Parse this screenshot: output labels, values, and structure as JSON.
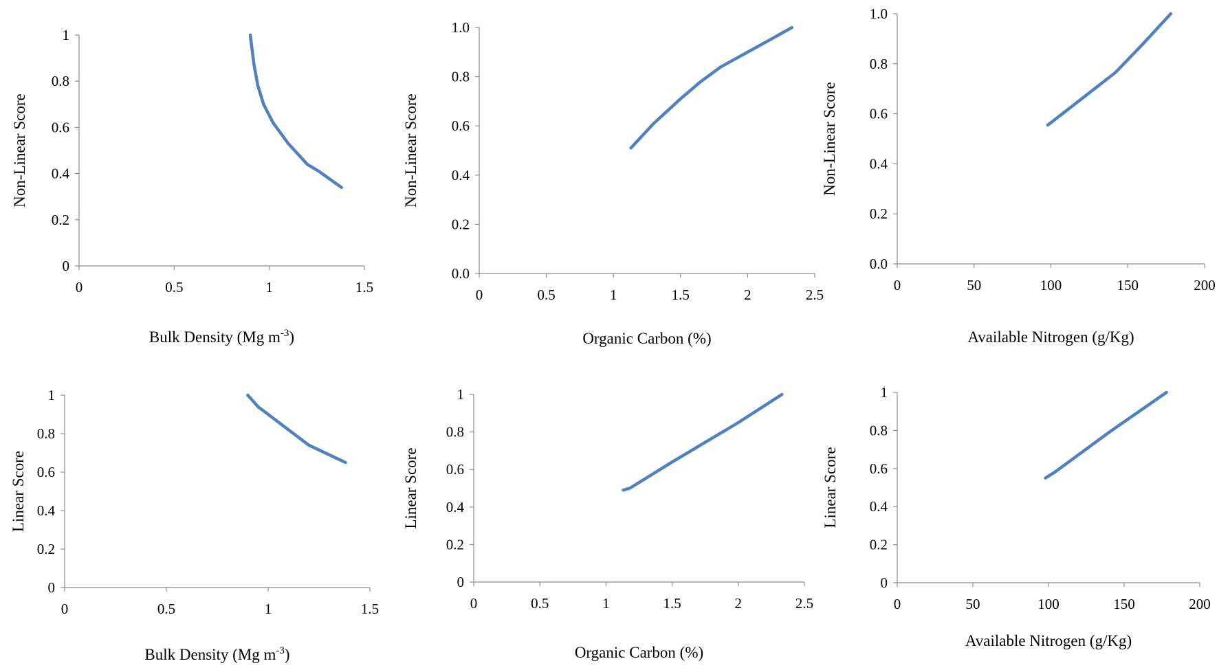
{
  "line_color": "#4f81bd",
  "chart_data": [
    {
      "type": "line",
      "xlabel": "Bulk Density (Mg m",
      "xlabel_sup": "-3",
      "xlabel_end": ")",
      "ylabel": "Non-Linear Score",
      "xlim": [
        0,
        1.5
      ],
      "ylim": [
        0,
        1
      ],
      "xticks": [
        "0",
        "0.5",
        "1",
        "1.5"
      ],
      "yticks": [
        "0",
        "0.2",
        "0.4",
        "0.6",
        "0.8",
        "1"
      ],
      "series": [
        {
          "x": [
            0.9,
            0.92,
            0.94,
            0.97,
            1.02,
            1.1,
            1.2,
            1.26,
            1.38
          ],
          "y": [
            1.0,
            0.87,
            0.78,
            0.7,
            0.62,
            0.53,
            0.44,
            0.41,
            0.34
          ]
        }
      ]
    },
    {
      "type": "line",
      "xlabel": "Organic Carbon (%)",
      "ylabel": "Non-Linear Score",
      "xlim": [
        0,
        2.5
      ],
      "ylim": [
        0,
        1
      ],
      "xticks": [
        "0",
        "0.5",
        "1",
        "1.5",
        "2",
        "2.5"
      ],
      "yticks": [
        "0.0",
        "0.2",
        "0.4",
        "0.6",
        "0.8",
        "1.0"
      ],
      "series": [
        {
          "x": [
            1.13,
            1.3,
            1.5,
            1.65,
            1.8,
            2.0,
            2.2,
            2.33
          ],
          "y": [
            0.51,
            0.61,
            0.71,
            0.78,
            0.84,
            0.9,
            0.96,
            1.0
          ]
        }
      ]
    },
    {
      "type": "line",
      "xlabel": "Available Nitrogen  (g/Kg)",
      "ylabel": "Non-Linear Score",
      "xlim": [
        0,
        200
      ],
      "ylim": [
        0,
        1
      ],
      "xticks": [
        "0",
        "50",
        "100",
        "150",
        "200"
      ],
      "yticks": [
        "0.0",
        "0.2",
        "0.4",
        "0.6",
        "0.8",
        "1.0"
      ],
      "series": [
        {
          "x": [
            98,
            120,
            142,
            160,
            178
          ],
          "y": [
            0.555,
            0.66,
            0.765,
            0.88,
            1.0
          ]
        }
      ]
    },
    {
      "type": "line",
      "xlabel": "Bulk Density (Mg m",
      "xlabel_sup": "-3",
      "xlabel_end": ")",
      "ylabel": "Linear Score",
      "xlim": [
        0,
        1.5
      ],
      "ylim": [
        0,
        1
      ],
      "xticks": [
        "0",
        "0.5",
        "1",
        "1.5"
      ],
      "yticks": [
        "0",
        "0.2",
        "0.4",
        "0.6",
        "0.8",
        "1"
      ],
      "series": [
        {
          "x": [
            0.9,
            0.95,
            1.0,
            1.1,
            1.2,
            1.3,
            1.38
          ],
          "y": [
            1.0,
            0.94,
            0.9,
            0.82,
            0.74,
            0.69,
            0.65
          ]
        }
      ]
    },
    {
      "type": "line",
      "xlabel": "Organic Carbon (%)",
      "ylabel": "Linear Score",
      "xlim": [
        0,
        2.5
      ],
      "ylim": [
        0,
        1
      ],
      "xticks": [
        "0",
        "0.5",
        "1",
        "1.5",
        "2",
        "2.5"
      ],
      "yticks": [
        "0",
        "0.2",
        "0.4",
        "0.6",
        "0.8",
        "1"
      ],
      "series": [
        {
          "x": [
            1.13,
            1.18,
            1.5,
            2.0,
            2.33
          ],
          "y": [
            0.49,
            0.5,
            0.64,
            0.85,
            1.0
          ]
        }
      ]
    },
    {
      "type": "line",
      "xlabel": "Available Nitrogen  (g/Kg)",
      "ylabel": "Linear Score",
      "xlim": [
        0,
        200
      ],
      "ylim": [
        0,
        1
      ],
      "xticks": [
        "0",
        "50",
        "100",
        "150",
        "200"
      ],
      "yticks": [
        "0",
        "0.2",
        "0.4",
        "0.6",
        "0.8",
        "1"
      ],
      "series": [
        {
          "x": [
            98,
            104,
            140,
            178
          ],
          "y": [
            0.55,
            0.58,
            0.79,
            1.0
          ]
        }
      ]
    }
  ]
}
